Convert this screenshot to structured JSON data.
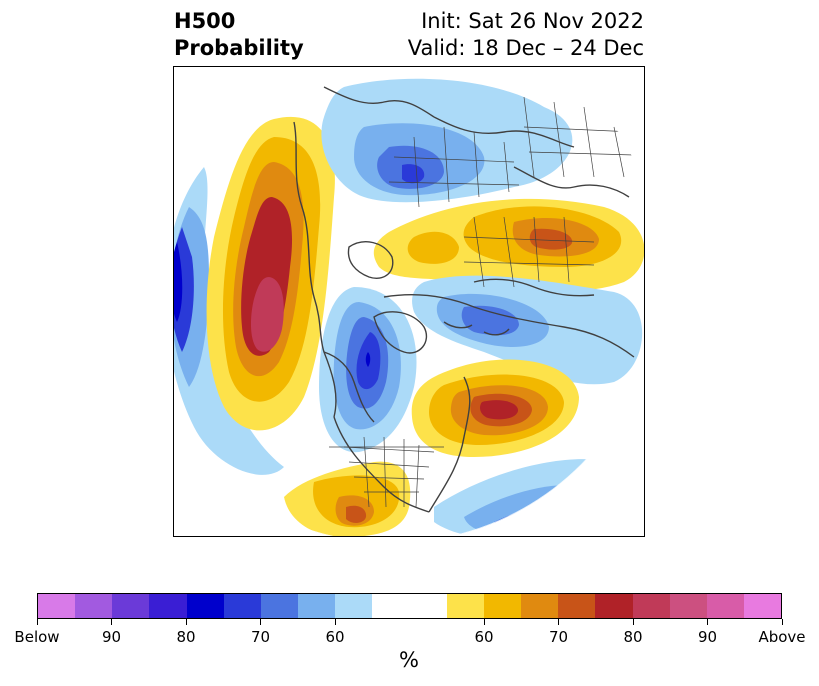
{
  "header": {
    "title_line1": "H500",
    "title_line2": "Probability",
    "init": "Init: Sat 26 Nov 2022",
    "valid": "Valid: 18 Dec – 24 Dec"
  },
  "colorbar": {
    "colors": [
      "#d87ae8",
      "#a25ae0",
      "#6b3ad8",
      "#3a1ed4",
      "#0000cc",
      "#2a3ad8",
      "#4b74e0",
      "#78b0ee",
      "#abdaf8",
      "#ffffff",
      "#ffffff",
      "#fde24a",
      "#f2b800",
      "#e08a10",
      "#c85418",
      "#b02228",
      "#c03a58",
      "#cc5080",
      "#d85ca8",
      "#e87ae0"
    ],
    "tick_labels": [
      "Below",
      "90",
      "80",
      "70",
      "60",
      "60",
      "70",
      "80",
      "90",
      "Above"
    ],
    "unit": "%"
  },
  "map": {
    "colors": {
      "above_60": "#fde24a",
      "above_65": "#f2b800",
      "above_70": "#e08a10",
      "above_75": "#c85418",
      "above_80": "#b02228",
      "above_85": "#c03a58",
      "below_60": "#abdaf8",
      "below_65": "#78b0ee",
      "below_70": "#4b74e0",
      "below_75": "#2a3ad8",
      "below_80": "#0000cc",
      "coast": "#404040"
    }
  }
}
